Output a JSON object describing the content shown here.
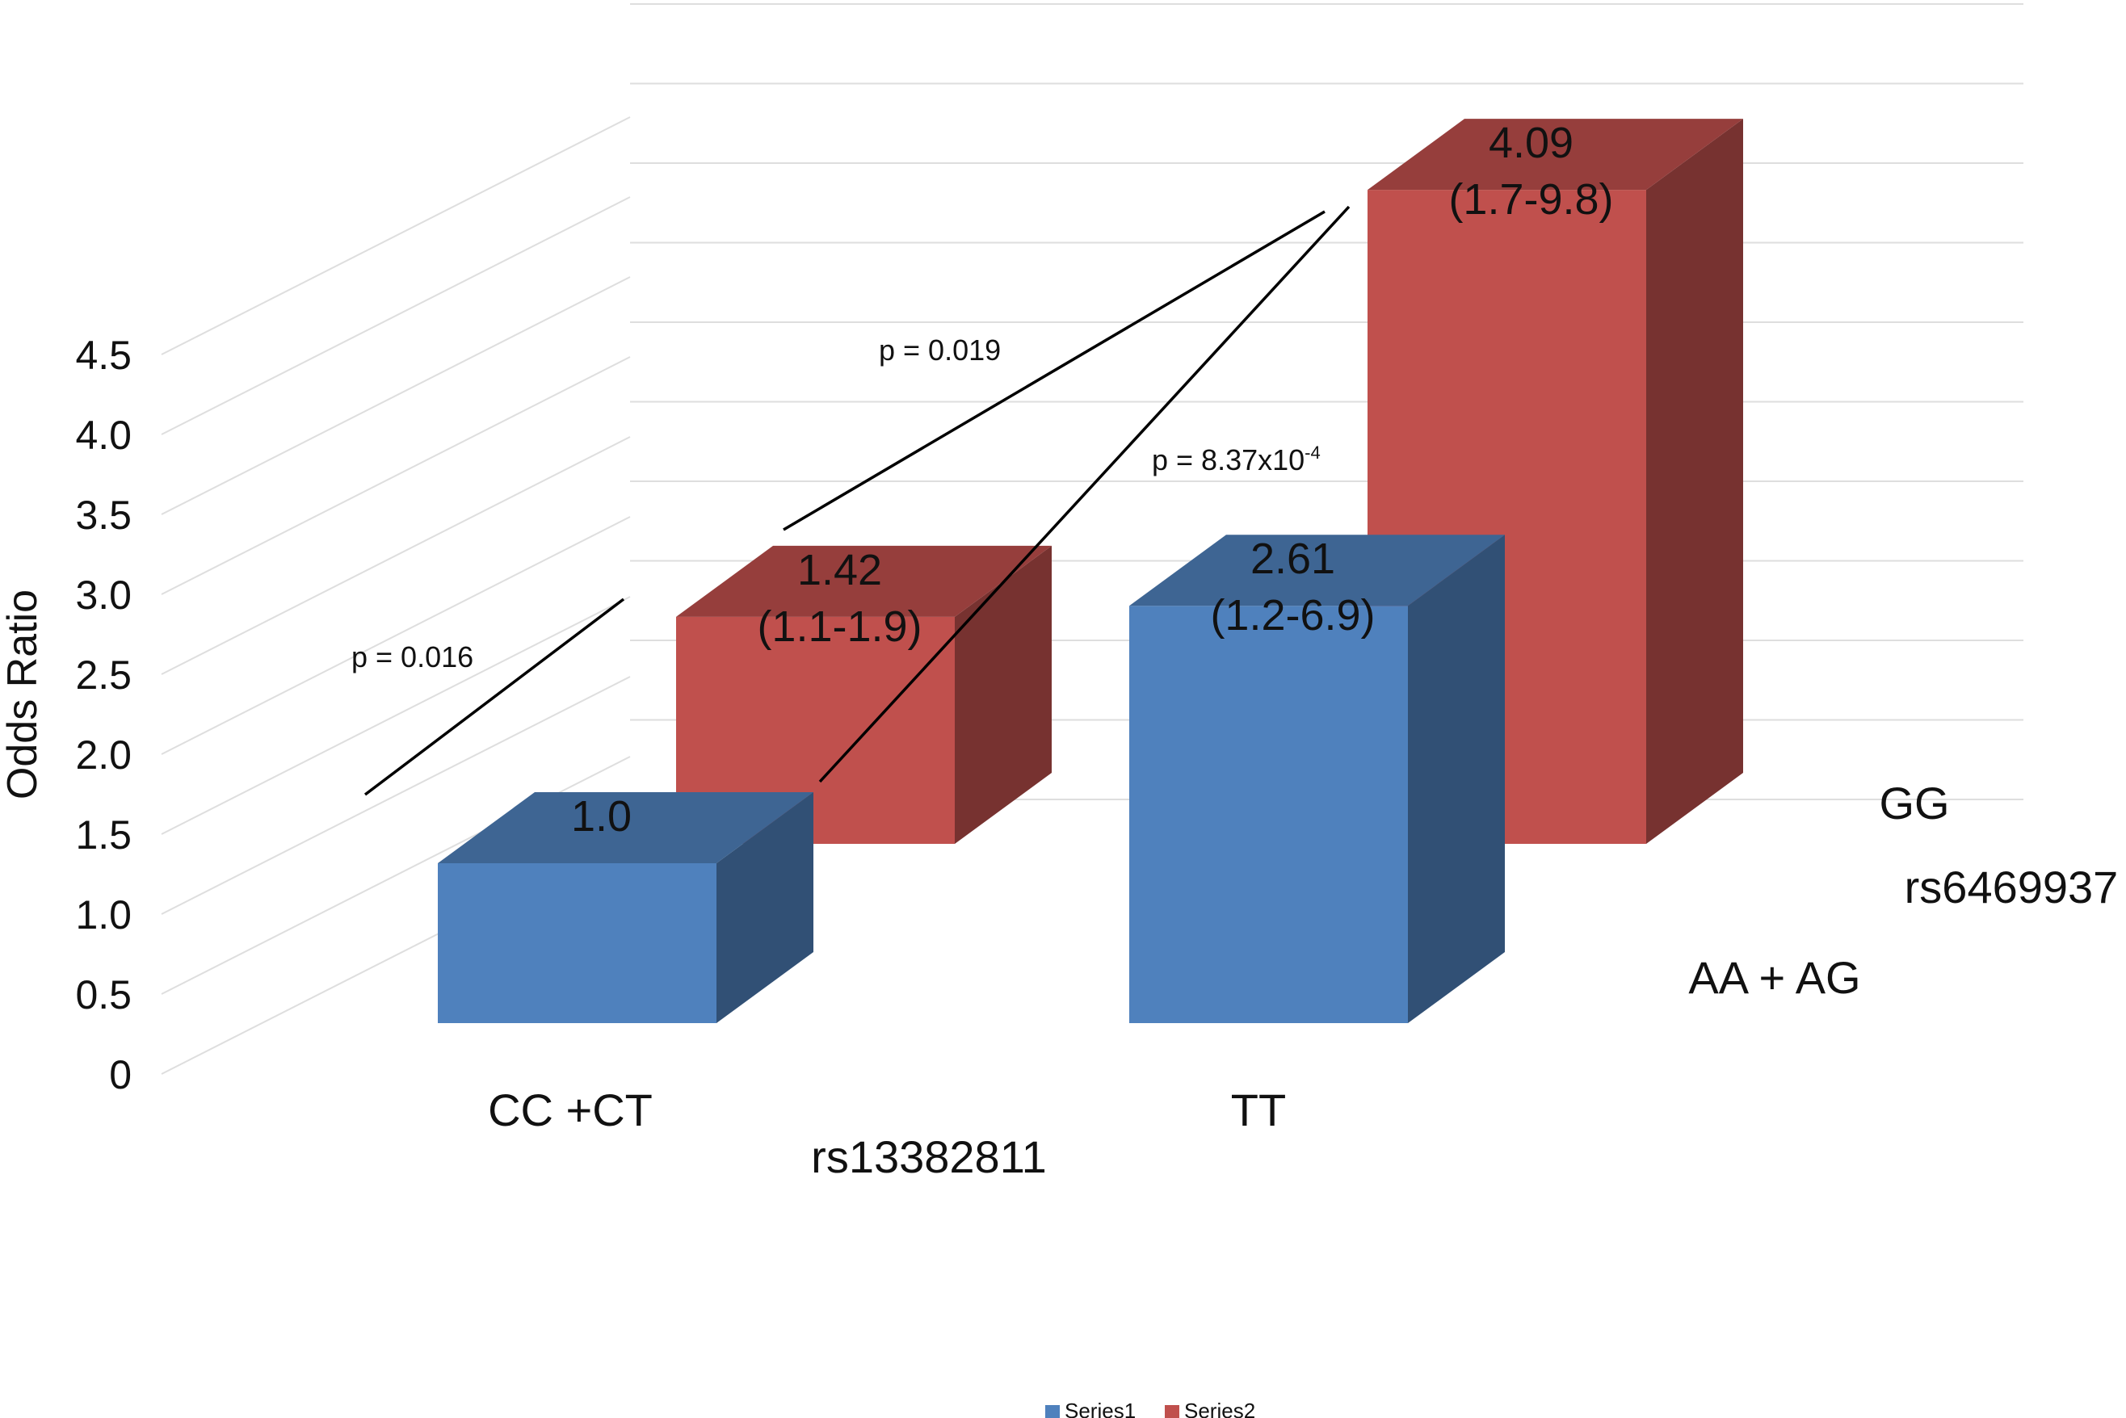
{
  "chart_data": {
    "type": "bar",
    "ylabel": "Odds Ratio",
    "yticks": [
      "0",
      "0.5",
      "1.0",
      "1.5",
      "2.0",
      "2.5",
      "3.0",
      "3.5",
      "4.0",
      "4.5"
    ],
    "ylim": [
      0,
      4.5
    ],
    "x_axis_label": "rs13382811",
    "depth_axis_label": "rs6469937",
    "categories": [
      "CC +CT",
      "TT"
    ],
    "depth_categories": [
      "AA + AG",
      "GG"
    ],
    "series": [
      {
        "name": "Series1",
        "depth_category": "AA + AG",
        "color": "#4f81bd",
        "values": [
          1.0,
          2.61
        ],
        "labels": [
          [
            "1.0"
          ],
          [
            "2.61",
            "(1.2-6.9)"
          ]
        ]
      },
      {
        "name": "Series2",
        "depth_category": "GG",
        "color": "#c0504d",
        "values": [
          1.42,
          4.09
        ],
        "labels": [
          [
            "1.42",
            "(1.1-1.9)"
          ],
          [
            "4.09",
            "(1.7-9.8)"
          ]
        ]
      }
    ],
    "annotations": [
      {
        "text": "p = 0.016"
      },
      {
        "text": "p = 0.019"
      },
      {
        "text_main": "p = 8.37x10",
        "text_sup": "-4"
      }
    ],
    "legend": {
      "placement": "bottom",
      "entries": [
        "Series1",
        "Series2"
      ]
    },
    "grid": true
  }
}
